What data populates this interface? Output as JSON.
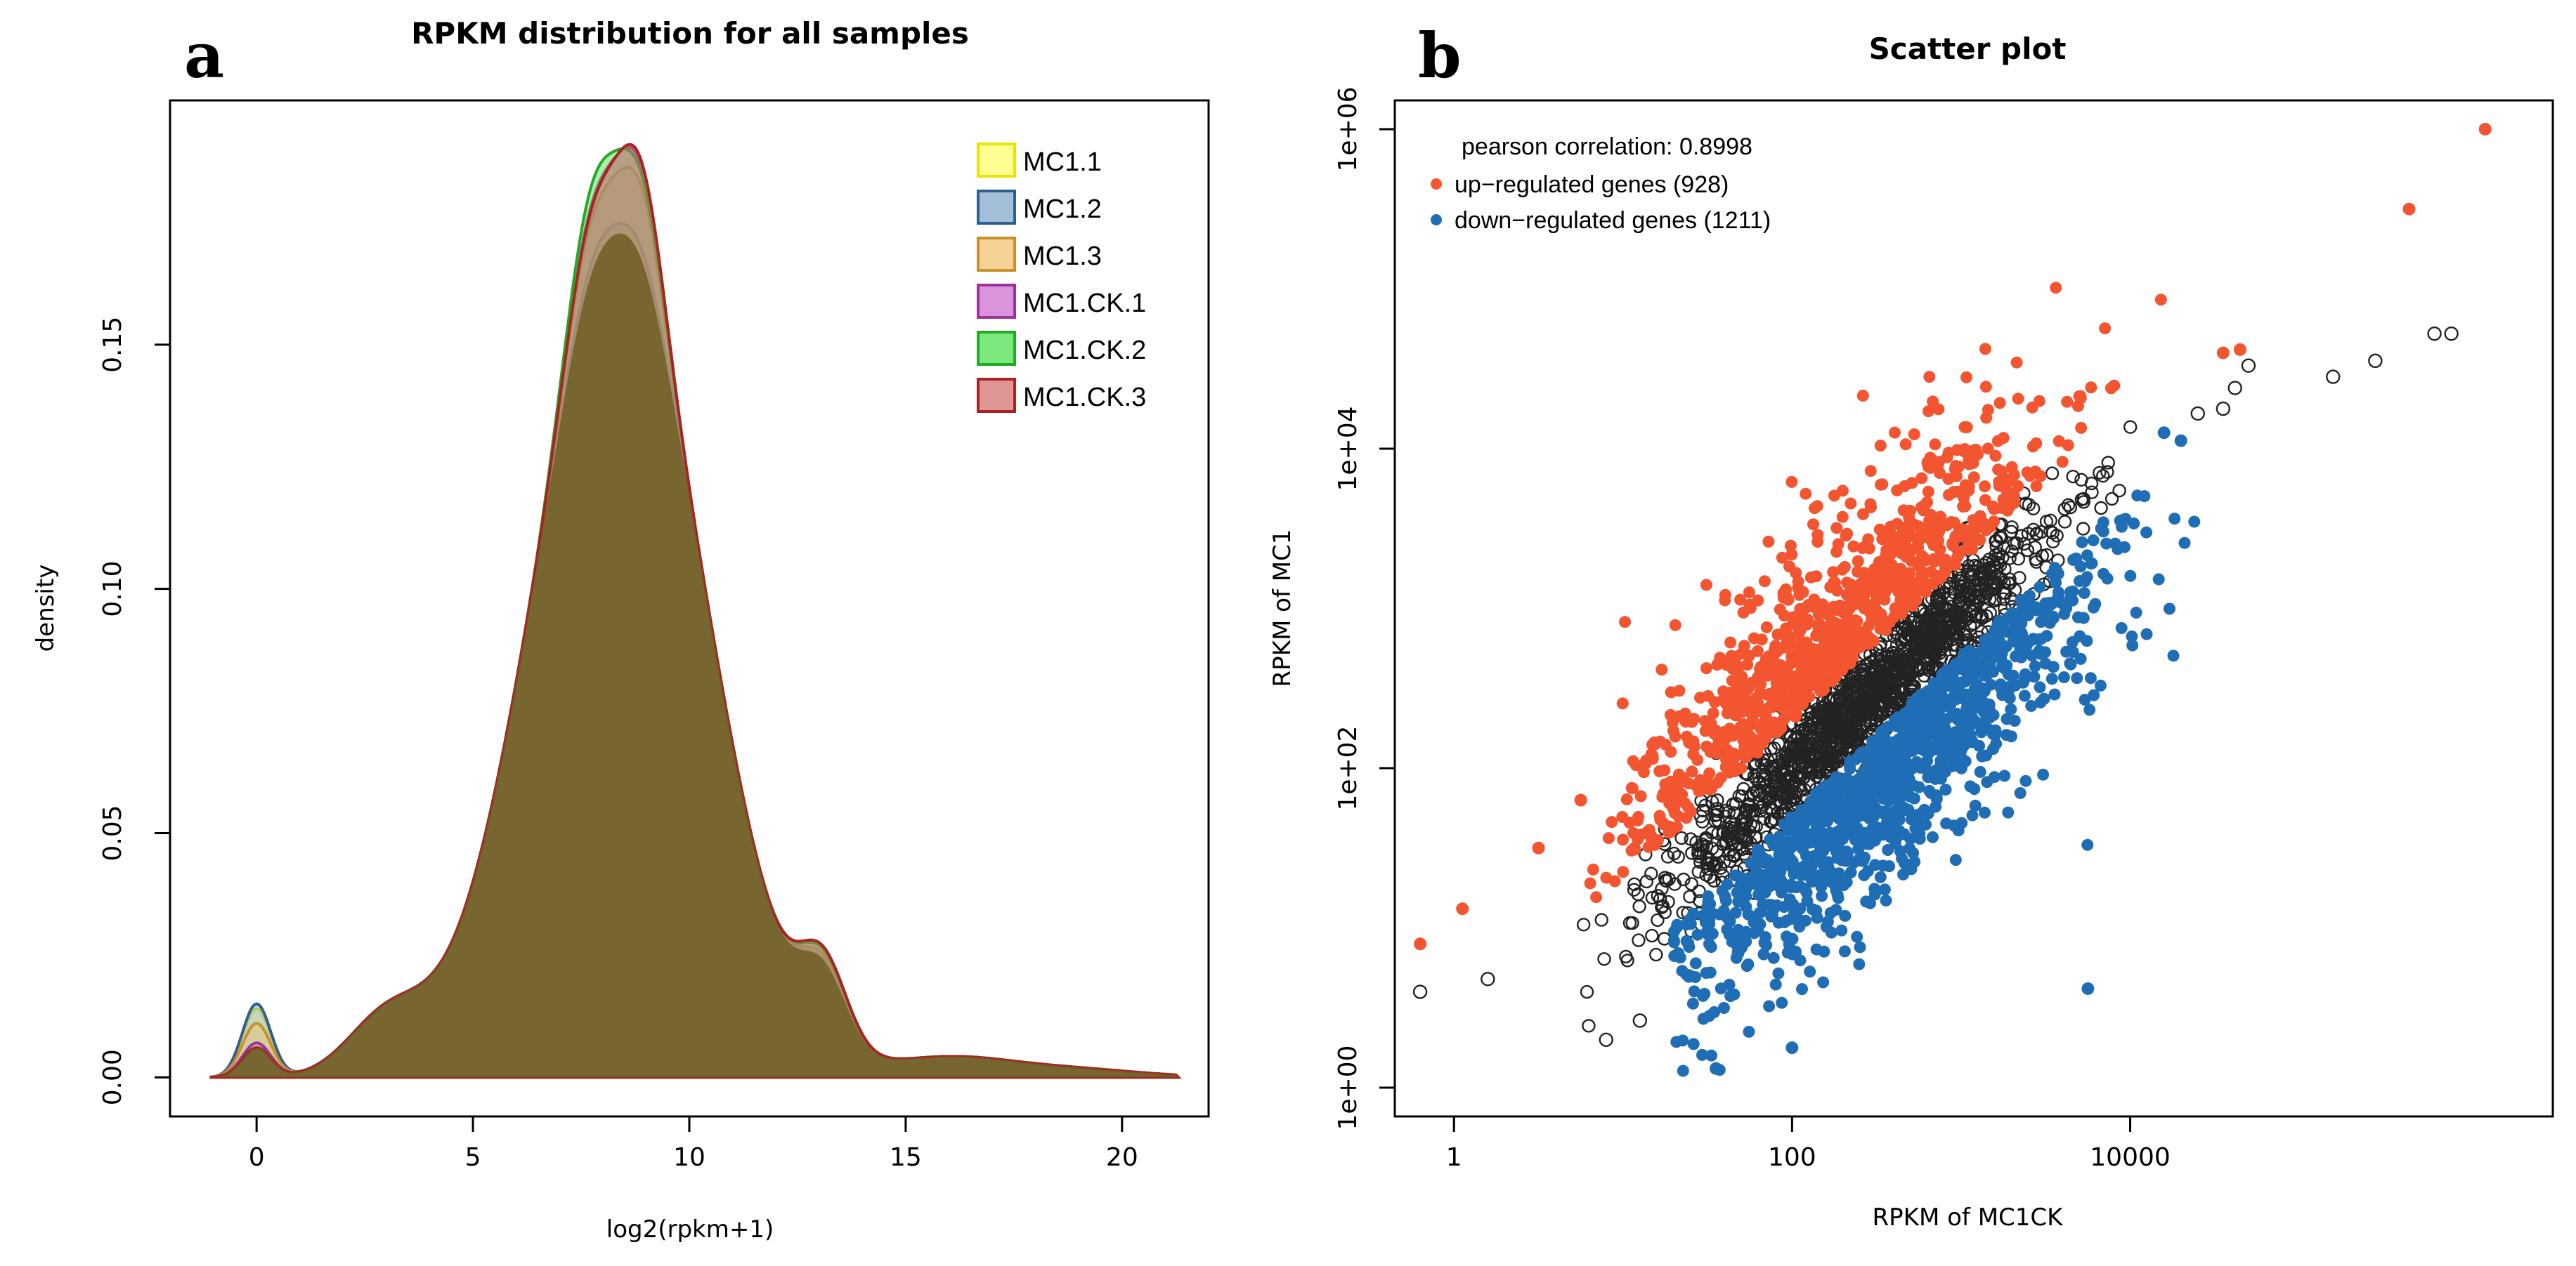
{
  "colors": {
    "up": "#f25530",
    "down": "#1f6db5",
    "ns_stroke": "#222222",
    "axis": "#000000"
  },
  "chart_data": [
    {
      "panel": "a",
      "type": "area",
      "title": "RPKM distribution for all samples",
      "xlabel": "log2(rpkm+1)",
      "ylabel": "density",
      "xlim": [
        -2,
        22
      ],
      "ylim": [
        -0.008,
        0.2
      ],
      "xticks": [
        0,
        5,
        10,
        15,
        20
      ],
      "yticks": [
        0.0,
        0.05,
        0.1,
        0.15
      ],
      "ytick_labels": [
        "0.00",
        "0.05",
        "0.10",
        "0.15"
      ],
      "legend_position": "top-right",
      "series": [
        {
          "name": "MC1.1",
          "fill": "#ffff66",
          "stroke": "#e6e600",
          "peak0": 0.014,
          "peakA": 0.173,
          "peakB": 0.172,
          "shoulder": 0.027
        },
        {
          "name": "MC1.2",
          "fill": "#7da3c8",
          "stroke": "#2e5e8e",
          "peak0": 0.015,
          "peakA": 0.175,
          "peakB": 0.174,
          "shoulder": 0.026
        },
        {
          "name": "MC1.3",
          "fill": "#f1c06a",
          "stroke": "#c8902a",
          "peak0": 0.011,
          "peakA": 0.183,
          "peakB": 0.186,
          "shoulder": 0.028
        },
        {
          "name": "MC1.CK.1",
          "fill": "#cc66cc",
          "stroke": "#993399",
          "peak0": 0.007,
          "peakA": 0.186,
          "peakB": 0.19,
          "shoulder": 0.031
        },
        {
          "name": "MC1.CK.2",
          "fill": "#44dd44",
          "stroke": "#22aa22",
          "peak0": 0.006,
          "peakA": 0.19,
          "peakB": 0.188,
          "shoulder": 0.03
        },
        {
          "name": "MC1.CK.3",
          "fill": "#d46a6a",
          "stroke": "#aa2222",
          "peak0": 0.006,
          "peakA": 0.185,
          "peakB": 0.191,
          "shoulder": 0.031
        }
      ]
    },
    {
      "panel": "b",
      "type": "scatter",
      "title": "Scatter plot",
      "xlabel": "RPKM of MC1CK",
      "ylabel": "RPKM of MC1",
      "x_scale": "log10",
      "y_scale": "log10",
      "xlim_log10": [
        -0.35,
        6.5
      ],
      "ylim_log10": [
        -0.18,
        6.18
      ],
      "xticks_log10": [
        0,
        2,
        4
      ],
      "xtick_labels": [
        "1",
        "100",
        "10000"
      ],
      "yticks_log10": [
        0,
        2,
        4,
        6
      ],
      "ytick_labels": [
        "1e+00",
        "1e+02",
        "1e+04",
        "1e+06"
      ],
      "annotations": {
        "pearson": "pearson correlation: 0.8998",
        "up_label": "up−regulated genes (928)",
        "down_label": "down−regulated genes (1211)"
      },
      "counts": {
        "up": 928,
        "down": 1211
      },
      "pearson_correlation": 0.8998,
      "highlight_points_log10": {
        "up": [
          [
            6.1,
            6.0
          ],
          [
            5.65,
            5.5
          ],
          [
            4.65,
            4.62
          ],
          [
            4.55,
            4.6
          ],
          [
            -0.2,
            0.9
          ],
          [
            0.05,
            1.12
          ],
          [
            0.75,
            1.8
          ],
          [
            0.5,
            1.5
          ]
        ],
        "down": [
          [
            4.3,
            4.05
          ],
          [
            4.2,
            4.1
          ],
          [
            3.75,
            0.62
          ],
          [
            2.0,
            0.25
          ],
          [
            1.55,
            0.12
          ]
        ],
        "ns": [
          [
            5.9,
            4.72
          ],
          [
            5.8,
            4.72
          ],
          [
            5.45,
            4.55
          ],
          [
            5.2,
            4.45
          ],
          [
            4.7,
            4.52
          ],
          [
            4.62,
            4.38
          ],
          [
            4.4,
            4.22
          ],
          [
            4.55,
            4.25
          ],
          [
            -0.2,
            0.6
          ],
          [
            0.2,
            0.68
          ],
          [
            0.9,
            0.3
          ],
          [
            1.1,
            0.42
          ]
        ]
      }
    }
  ]
}
